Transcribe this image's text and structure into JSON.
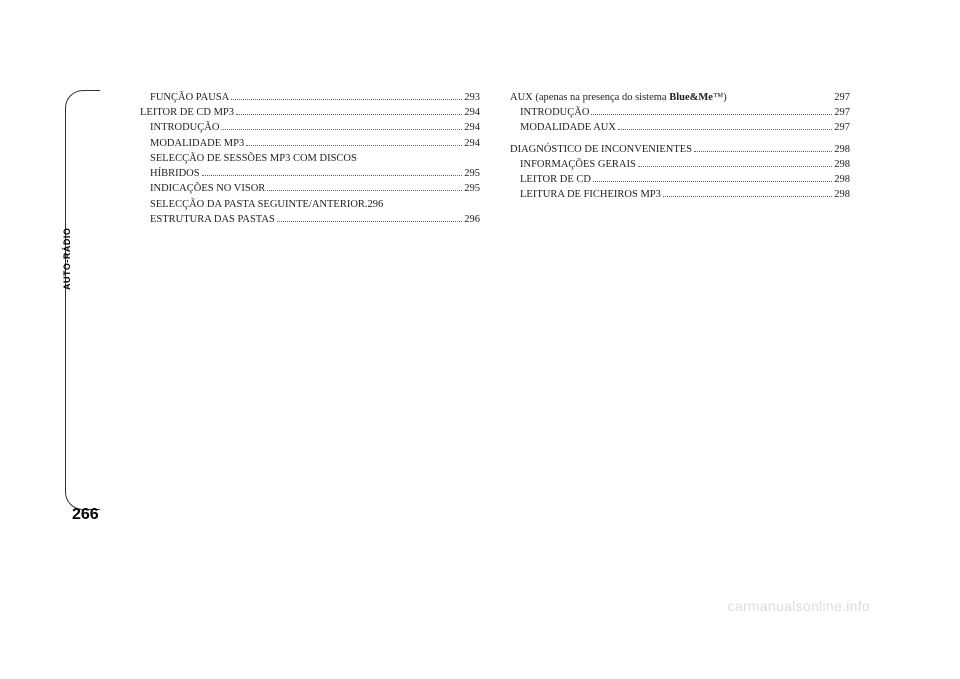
{
  "side_label": "AUTO-RÁDIO",
  "page_number": "266",
  "watermark": "carmanualsonline.info",
  "left_col": [
    {
      "label": "FUNÇÃO PAUSA",
      "page": "293",
      "indent": true
    },
    {
      "label": "LEITOR DE CD MP3",
      "page": "294",
      "indent": false
    },
    {
      "label": "INTRODUÇÃO",
      "page": "294",
      "indent": true
    },
    {
      "label": "MODALIDADE MP3",
      "page": "294",
      "indent": true
    },
    {
      "label": "SELECÇÃO DE SESSÕES MP3 COM DISCOS",
      "page": "",
      "indent": true,
      "nodots": true
    },
    {
      "label": "HÍBRIDOS",
      "page": "295",
      "indent": true
    },
    {
      "label": "INDICAÇÕES NO VISOR",
      "page": "295",
      "indent": true
    },
    {
      "label": "SELECÇÃO DA PASTA SEGUINTE/ANTERIOR",
      "page": "296",
      "indent": true,
      "tight": true
    },
    {
      "label": "ESTRUTURA DAS PASTAS",
      "page": "296",
      "indent": true
    }
  ],
  "right_col": [
    {
      "label": "AUX (apenas na presença do sistema <b>Blue&Me</b>™)",
      "page": "297",
      "indent": false,
      "gap": true
    },
    {
      "label": "INTRODUÇÃO",
      "page": "297",
      "indent": true
    },
    {
      "label": "MODALIDADE AUX",
      "page": "297",
      "indent": true
    },
    {
      "label": "DIAGNÓSTICO DE INCONVENIENTES",
      "page": "298",
      "indent": false,
      "spacer": true
    },
    {
      "label": "INFORMAÇÕES GERAIS",
      "page": "298",
      "indent": true
    },
    {
      "label": "LEITOR DE CD",
      "page": "298",
      "indent": true
    },
    {
      "label": "LEITURA DE FICHEIROS MP3",
      "page": "298",
      "indent": true
    }
  ]
}
